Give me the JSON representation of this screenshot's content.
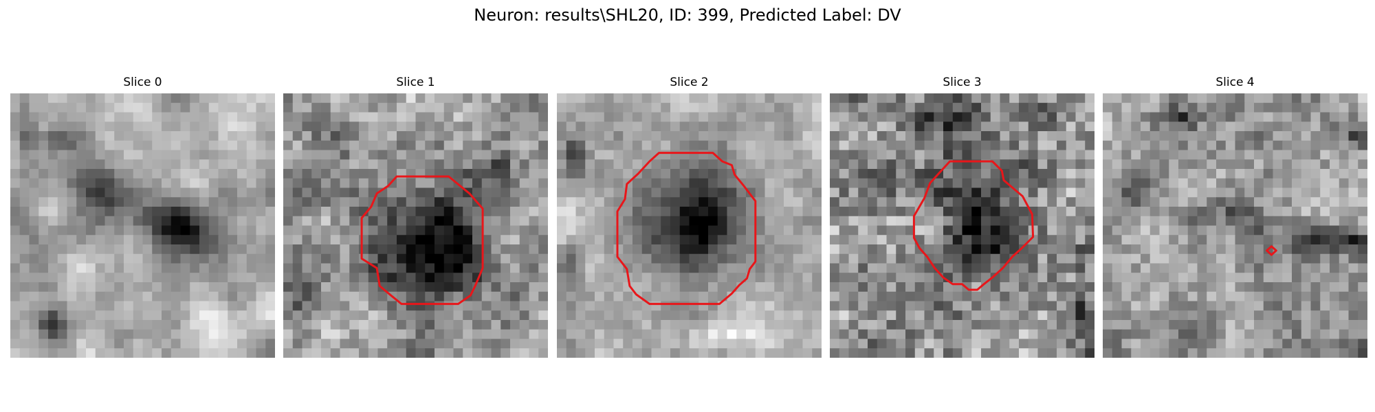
{
  "figure": {
    "title": "Neuron: results\\SHL20, ID: 399, Predicted Label: DV",
    "contour_color": "#e8161a"
  },
  "panels": [
    {
      "title": "Slice 0",
      "has_contour": false
    },
    {
      "title": "Slice 1",
      "has_contour": true
    },
    {
      "title": "Slice 2",
      "has_contour": true
    },
    {
      "title": "Slice 3",
      "has_contour": true
    },
    {
      "title": "Slice 4",
      "has_contour": true
    }
  ]
}
